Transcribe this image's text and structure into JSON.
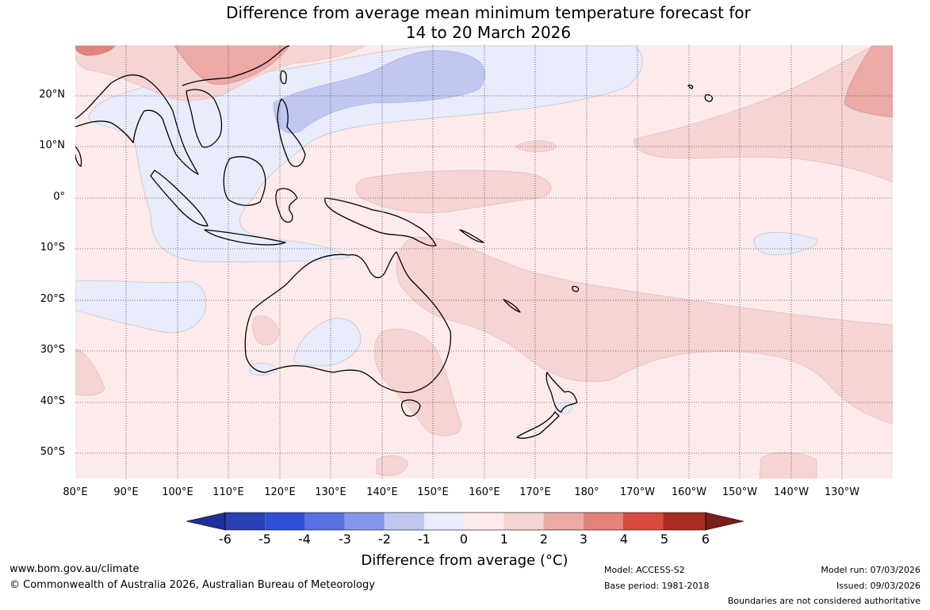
{
  "title_line1": "Difference from average mean minimum temperature forecast for",
  "title_line2": "14 to 20 March 2026",
  "lat_labels": [
    "20°N",
    "10°N",
    "0°",
    "10°S",
    "20°S",
    "30°S",
    "40°S",
    "50°S"
  ],
  "lon_labels": [
    "80°E",
    "90°E",
    "100°E",
    "110°E",
    "120°E",
    "130°E",
    "140°E",
    "150°E",
    "160°E",
    "170°E",
    "180°",
    "170°W",
    "160°W",
    "150°W",
    "140°W",
    "130°W"
  ],
  "colorbar": {
    "ticks": [
      "-6",
      "-5",
      "-4",
      "-3",
      "-2",
      "-1",
      "0",
      "1",
      "2",
      "3",
      "4",
      "5",
      "6"
    ],
    "colors": [
      "#1f2f9c",
      "#2a40b5",
      "#3050d8",
      "#5870e0",
      "#8596e8",
      "#c0c8f2",
      "#e8ecfb",
      "#fcebea",
      "#f5d4d3",
      "#eca9a5",
      "#e4837b",
      "#d94a3e",
      "#aa2a24",
      "#7a1e1a"
    ],
    "label": "Difference from average (°C)"
  },
  "footer": {
    "website": "www.bom.gov.au/climate",
    "copyright": "© Commonwealth of Australia 2026, Australian Bureau of Meteorology",
    "model": "Model: ACCESS-S2",
    "base_period": "Base period: 1981-2018",
    "model_run": "Model run: 07/03/2026",
    "issued": "Issued: 09/03/2026",
    "disclaimer": "Boundaries are not considered authoritative"
  }
}
